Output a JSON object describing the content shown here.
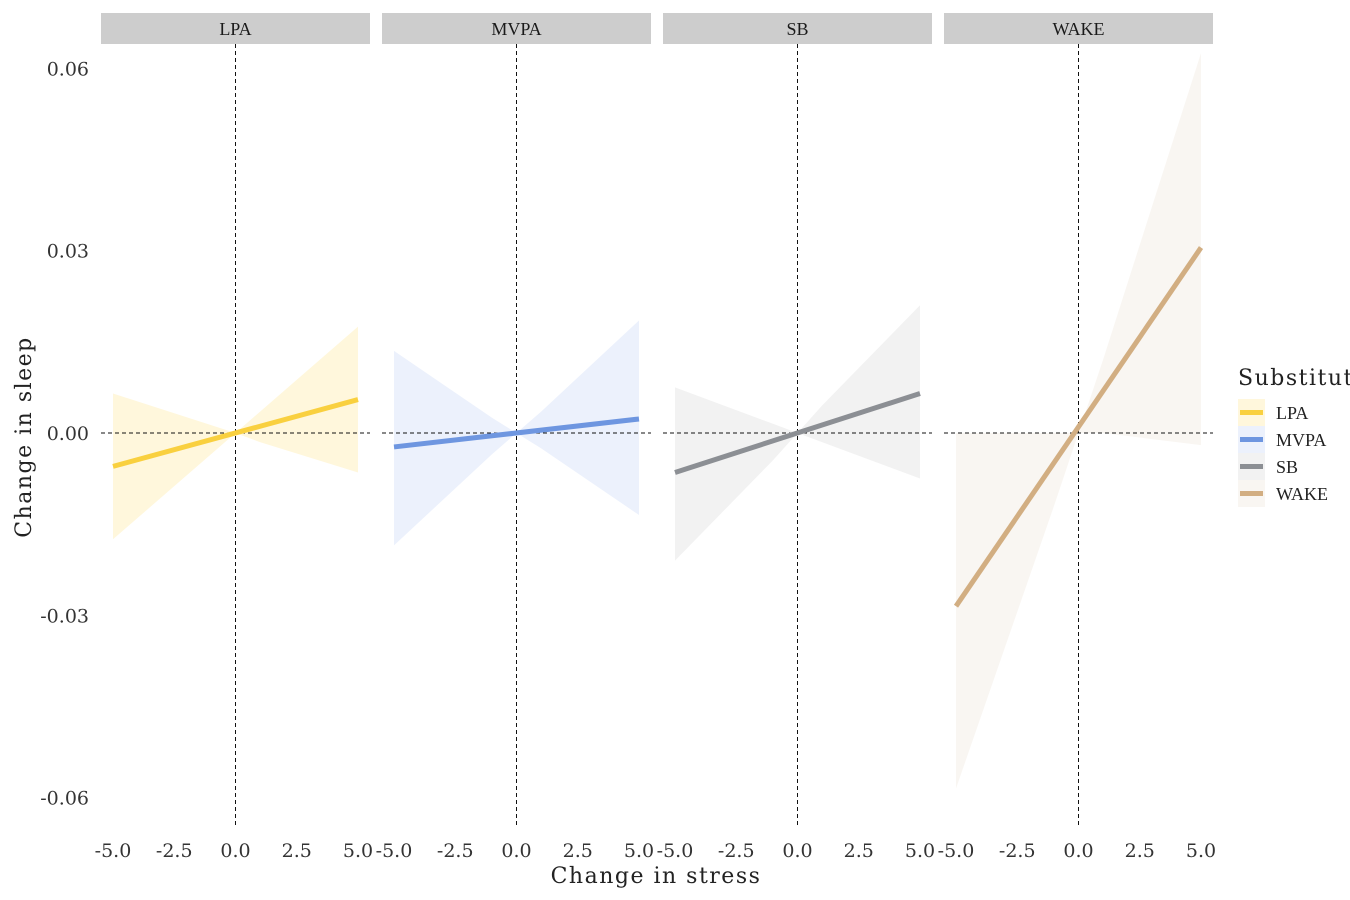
{
  "chart_data": {
    "type": "line",
    "xlabel": "Change in stress",
    "ylabel": "Change in sleep",
    "xlim": [
      -5.0,
      5.0
    ],
    "ylim": [
      -0.065,
      0.064
    ],
    "x_ticks": [
      -5.0,
      -2.5,
      0.0,
      2.5,
      5.0
    ],
    "x_tick_labels": [
      "-5.0",
      "-2.5",
      "0.0",
      "2.5",
      "5.0"
    ],
    "y_ticks": [
      0.06,
      0.03,
      0.0,
      -0.03,
      -0.06
    ],
    "y_tick_labels": [
      "0.06",
      "0.03",
      "0.00",
      "-0.03",
      "-0.06"
    ],
    "reference_lines": {
      "x": 0,
      "y": 0,
      "style": "dashed"
    },
    "grid": false,
    "legend": {
      "title": "Substitut",
      "position": "right",
      "entries": [
        {
          "label": "LPA",
          "color": "#F9D03F"
        },
        {
          "label": "MVPA",
          "color": "#6E96E0"
        },
        {
          "label": "SB",
          "color": "#8C8F94"
        },
        {
          "label": "WAKE",
          "color": "#D2AE82"
        }
      ]
    },
    "panels": [
      {
        "name": "LPA",
        "color": "#F9D03F",
        "fill": "#FFF7DC",
        "line": {
          "x": [
            -5.0,
            5.0
          ],
          "y": [
            -0.0055,
            0.0055
          ]
        },
        "band": {
          "x": [
            -5.0,
            0.0,
            1.0,
            5.0
          ],
          "upper": [
            0.0065,
            0.0,
            0.0035,
            0.0175
          ],
          "lower": [
            -0.0175,
            0.0,
            -0.0015,
            -0.0065
          ]
        }
      },
      {
        "name": "MVPA",
        "color": "#6E96E0",
        "fill": "#ECF1FC",
        "line": {
          "x": [
            -5.0,
            5.0
          ],
          "y": [
            -0.0023,
            0.0023
          ]
        },
        "band": {
          "x": [
            -5.0,
            -1.0,
            0.0,
            1.0,
            5.0
          ],
          "upper": [
            0.0135,
            0.0025,
            0.0,
            0.0035,
            0.0185
          ],
          "lower": [
            -0.0185,
            -0.0035,
            0.0,
            -0.0025,
            -0.0135
          ]
        }
      },
      {
        "name": "SB",
        "color": "#8C8F94",
        "fill": "#F2F2F2",
        "line": {
          "x": [
            -5.0,
            5.0
          ],
          "y": [
            -0.0065,
            0.0065
          ]
        },
        "band": {
          "x": [
            -5.0,
            -1.0,
            0.0,
            1.0,
            5.0
          ],
          "upper": [
            0.0075,
            0.0015,
            0.0,
            0.0045,
            0.021
          ],
          "lower": [
            -0.021,
            -0.0045,
            0.0,
            -0.0015,
            -0.0075
          ]
        }
      },
      {
        "name": "WAKE",
        "color": "#D2AE82",
        "fill": "#F9F6F2",
        "line": {
          "x": [
            -5.0,
            5.0
          ],
          "y": [
            -0.0285,
            0.0305
          ]
        },
        "band": {
          "x": [
            -5.0,
            -1.0,
            0.0,
            1.0,
            5.0
          ],
          "upper": [
            0.0,
            0.0,
            0.0,
            0.012,
            0.0625
          ],
          "lower": [
            -0.0585,
            -0.012,
            0.0,
            0.0,
            -0.002
          ]
        }
      }
    ]
  }
}
